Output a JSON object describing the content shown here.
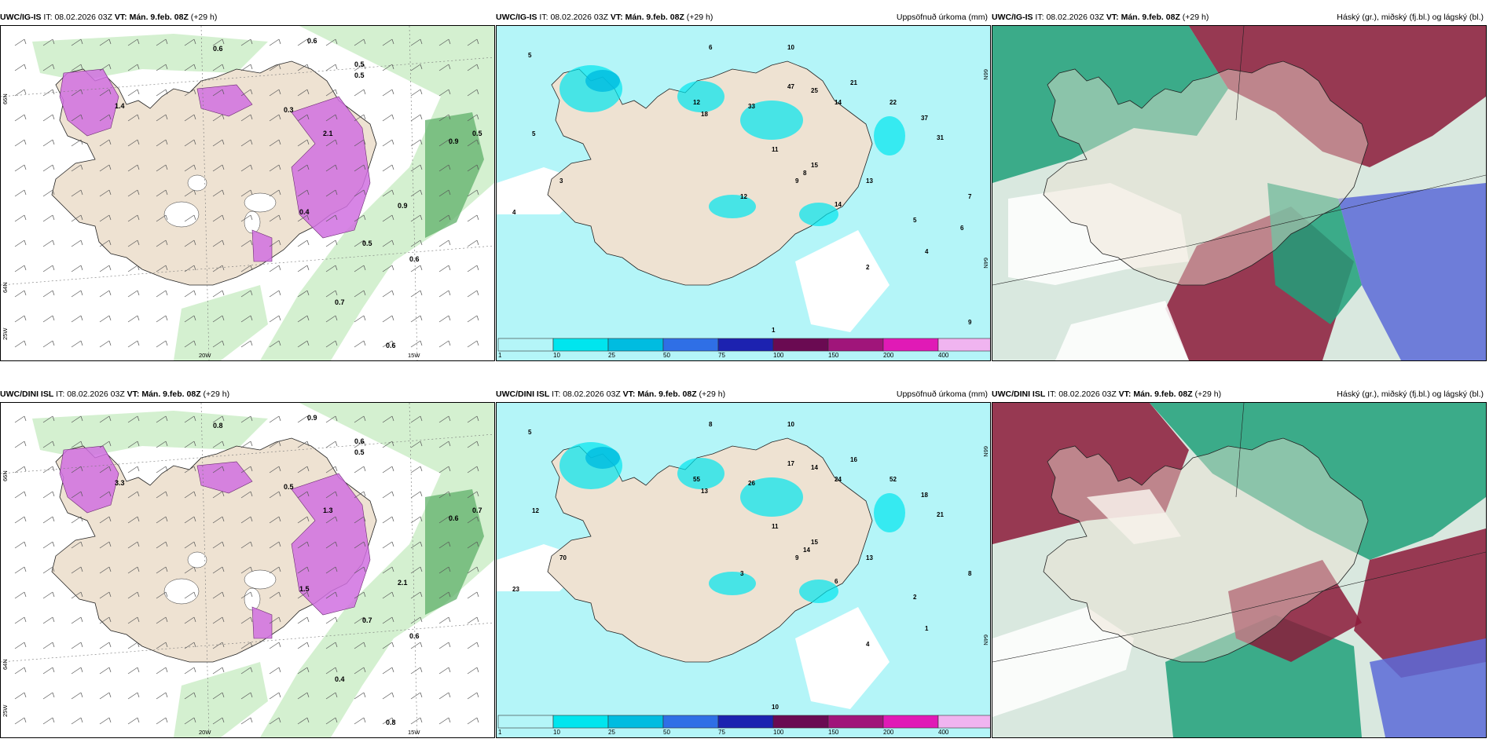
{
  "panels": [
    {
      "id": "p1",
      "model": "UWC/IG-IS",
      "it_label": "IT:",
      "it": "08.02.2026 03Z",
      "vt_label": "VT:",
      "vt": "Mán. 9.feb. 08Z",
      "lead": "(+29 h)",
      "right_title": "",
      "kind": "snow"
    },
    {
      "id": "p2",
      "model": "UWC/IG-IS",
      "it_label": "IT:",
      "it": "08.02.2026 03Z",
      "vt_label": "VT:",
      "vt": "Mán. 9.feb. 08Z",
      "lead": "(+29 h)",
      "right_title": "Uppsöfnuð úrkoma (mm)",
      "kind": "precip"
    },
    {
      "id": "p3",
      "model": "UWC/IG-IS",
      "it_label": "IT:",
      "it": "08.02.2026 03Z",
      "vt_label": "VT:",
      "vt": "Mán. 9.feb. 08Z",
      "lead": "(+29 h)",
      "right_title": "Háský (gr.), miðský (fj.bl.) og lágský (bl.)",
      "kind": "cloud"
    },
    {
      "id": "p4",
      "model": "UWC/DINI ISL",
      "it_label": "IT:",
      "it": "08.02.2026 03Z",
      "vt_label": "VT:",
      "vt": "Mán. 9.feb. 08Z",
      "lead": "(+29 h)",
      "right_title": "",
      "kind": "snow"
    },
    {
      "id": "p5",
      "model": "UWC/DINI ISL",
      "it_label": "IT:",
      "it": "08.02.2026 03Z",
      "vt_label": "VT:",
      "vt": "Mán. 9.feb. 08Z",
      "lead": "(+29 h)",
      "right_title": "Uppsöfnuð úrkoma (mm)",
      "kind": "precip"
    },
    {
      "id": "p6",
      "model": "UWC/DINI ISL",
      "it_label": "IT:",
      "it": "08.02.2026 03Z",
      "vt_label": "VT:",
      "vt": "Mán. 9.feb. 08Z",
      "lead": "(+29 h)",
      "right_title": "Háský (gr.), miðský (fj.bl.) og lágský (bl.)",
      "kind": "cloud"
    }
  ],
  "precip_legend": {
    "ticks": [
      "1",
      "10",
      "25",
      "50",
      "75",
      "100",
      "150",
      "200",
      "400"
    ],
    "colors": [
      "#b4f5f8",
      "#00e5ee",
      "#00bce0",
      "#2f6fe6",
      "#1c22b0",
      "#6a0a52",
      "#a0157a",
      "#e01ab6",
      "#f0b4f0"
    ]
  },
  "axis_labels": {
    "lon_20": "20W",
    "lon_15": "15W",
    "lat_66": "66N",
    "lat_64": "64N",
    "lon_25": "25W"
  },
  "snow_values_p1": [
    "0.6",
    "0.6",
    "0.5",
    "0.5",
    "0.9",
    "0.5",
    "0.6",
    "0.7",
    "0.6",
    "0.5",
    "0.3",
    "0.4",
    "0.9",
    "1.4",
    "2.1"
  ],
  "snow_values_p4": [
    "0.8",
    "0.9",
    "0.6",
    "0.5",
    "0.6",
    "0.7",
    "0.6",
    "0.4",
    "0.8",
    "0.7",
    "0.5",
    "1.5",
    "2.1",
    "3.3",
    "1.3"
  ],
  "precip_values_p2": [
    "5",
    "6",
    "10",
    "5",
    "4",
    "3",
    "12",
    "18",
    "33",
    "47",
    "25",
    "21",
    "14",
    "22",
    "37",
    "31",
    "15",
    "13",
    "9",
    "11",
    "8",
    "12",
    "14",
    "5",
    "4",
    "2",
    "1",
    "7",
    "6",
    "9"
  ],
  "precip_values_p5": [
    "5",
    "8",
    "10",
    "12",
    "23",
    "70",
    "55",
    "13",
    "26",
    "17",
    "14",
    "16",
    "24",
    "52",
    "18",
    "21",
    "15",
    "13",
    "9",
    "11",
    "14",
    "3",
    "6",
    "2",
    "1",
    "4",
    "10",
    "8"
  ],
  "colors": {
    "land": "#eee2d2",
    "precip_bg": "#b4f5f8",
    "snow_green": "#c9ecc4",
    "snow_dark_green": "#5fb06a",
    "snow_purple": "#d070e0",
    "cloud_red": "#8b1a3a",
    "cloud_green": "#1fa07a",
    "cloud_blue": "#5a6ad8"
  }
}
